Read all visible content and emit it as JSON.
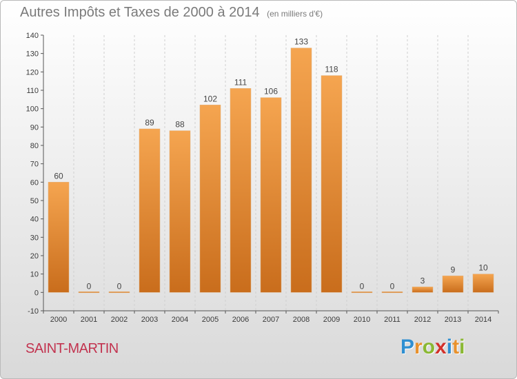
{
  "title": {
    "main": "Autres Impôts et Taxes de 2000 à 2014",
    "unit": "(en milliers d'€)"
  },
  "commune": "SAINT-MARTIN",
  "logo": {
    "letters": [
      "P",
      "r",
      "o",
      "x",
      "i",
      "t",
      "i"
    ]
  },
  "colors": {
    "bar_light": "#f5a550",
    "bar_dark": "#c96d1c",
    "grid": "#cfcfcf",
    "axis": "#555555",
    "title": "#7a7a7a",
    "commune": "#c2334f"
  },
  "chart_data": {
    "type": "bar",
    "categories": [
      "2000",
      "2001",
      "2002",
      "2003",
      "2004",
      "2005",
      "2006",
      "2007",
      "2008",
      "2009",
      "2010",
      "2011",
      "2012",
      "2013",
      "2014"
    ],
    "values": [
      60,
      0,
      0,
      89,
      88,
      102,
      111,
      106,
      133,
      118,
      0,
      0,
      3,
      9,
      10
    ],
    "data_labels": [
      "60",
      "0",
      "0",
      "89",
      "88",
      "102",
      "111",
      "106",
      "133",
      "118",
      "0",
      "0",
      "3",
      "9",
      "10"
    ],
    "ylim": [
      -10,
      140
    ],
    "yticks": [
      -10,
      0,
      10,
      20,
      30,
      40,
      50,
      60,
      70,
      80,
      90,
      100,
      110,
      120,
      130,
      140
    ],
    "grid": "vertical",
    "legend": "none"
  }
}
